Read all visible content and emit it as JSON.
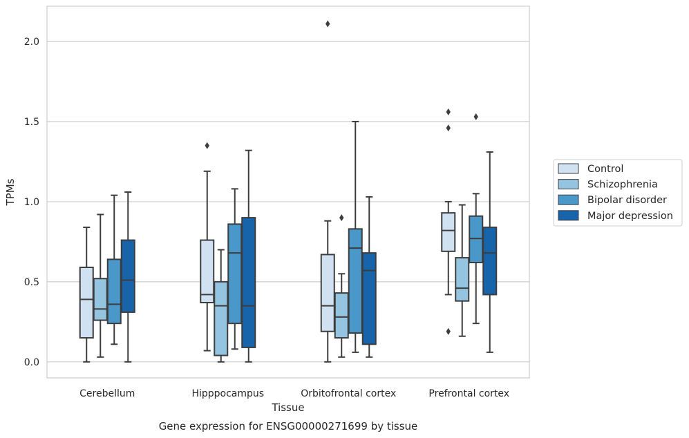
{
  "chart_data": {
    "type": "box",
    "xlabel": "Tissue",
    "ylabel": "TPMs",
    "caption": "Gene expression for ENSG00000271699 by tissue",
    "ylim": [
      -0.1,
      2.22
    ],
    "yticks": [
      "0.0",
      "0.5",
      "1.0",
      "1.5",
      "2.0"
    ],
    "ytick_values": [
      0.0,
      0.5,
      1.0,
      1.5,
      2.0
    ],
    "grid": "horizontal",
    "legend_position": "right",
    "categories": [
      "Cerebellum",
      "Hipppocampus",
      "Orbitofrontal cortex",
      "Prefrontal cortex"
    ],
    "series": [
      {
        "name": "Control",
        "color": "#d0e1f2",
        "boxes": [
          {
            "whislo": 0.0,
            "q1": 0.15,
            "med": 0.39,
            "q3": 0.59,
            "whishi": 0.84,
            "fliers": []
          },
          {
            "whislo": 0.07,
            "q1": 0.37,
            "med": 0.42,
            "q3": 0.76,
            "whishi": 1.19,
            "fliers": [
              1.35
            ]
          },
          {
            "whislo": 0.0,
            "q1": 0.19,
            "med": 0.35,
            "q3": 0.67,
            "whishi": 0.88,
            "fliers": [
              2.11
            ]
          },
          {
            "whislo": 0.42,
            "q1": 0.69,
            "med": 0.82,
            "q3": 0.93,
            "whishi": 1.0,
            "fliers": [
              0.19,
              1.46,
              1.56
            ]
          }
        ]
      },
      {
        "name": "Schizophrenia",
        "color": "#94c4df",
        "boxes": [
          {
            "whislo": 0.03,
            "q1": 0.26,
            "med": 0.33,
            "q3": 0.52,
            "whishi": 0.92,
            "fliers": []
          },
          {
            "whislo": 0.0,
            "q1": 0.04,
            "med": 0.35,
            "q3": 0.5,
            "whishi": 0.7,
            "fliers": []
          },
          {
            "whislo": 0.03,
            "q1": 0.15,
            "med": 0.28,
            "q3": 0.43,
            "whishi": 0.55,
            "fliers": [
              0.9
            ]
          },
          {
            "whislo": 0.16,
            "q1": 0.38,
            "med": 0.46,
            "q3": 0.65,
            "whishi": 0.98,
            "fliers": []
          }
        ]
      },
      {
        "name": "Bipolar disorder",
        "color": "#4a98c9",
        "boxes": [
          {
            "whislo": 0.11,
            "q1": 0.24,
            "med": 0.36,
            "q3": 0.64,
            "whishi": 1.04,
            "fliers": []
          },
          {
            "whislo": 0.08,
            "q1": 0.24,
            "med": 0.68,
            "q3": 0.86,
            "whishi": 1.08,
            "fliers": []
          },
          {
            "whislo": 0.06,
            "q1": 0.18,
            "med": 0.71,
            "q3": 0.83,
            "whishi": 1.5,
            "fliers": []
          },
          {
            "whislo": 0.24,
            "q1": 0.62,
            "med": 0.77,
            "q3": 0.91,
            "whishi": 1.05,
            "fliers": [
              1.53
            ]
          }
        ]
      },
      {
        "name": "Major depression",
        "color": "#1764ab",
        "boxes": [
          {
            "whislo": 0.0,
            "q1": 0.31,
            "med": 0.51,
            "q3": 0.76,
            "whishi": 1.06,
            "fliers": []
          },
          {
            "whislo": 0.0,
            "q1": 0.09,
            "med": 0.35,
            "q3": 0.9,
            "whishi": 1.32,
            "fliers": []
          },
          {
            "whislo": 0.03,
            "q1": 0.11,
            "med": 0.57,
            "q3": 0.68,
            "whishi": 1.03,
            "fliers": []
          },
          {
            "whislo": 0.06,
            "q1": 0.42,
            "med": 0.68,
            "q3": 0.84,
            "whishi": 1.31,
            "fliers": []
          }
        ]
      }
    ],
    "edge_color": "#3d3d3d",
    "grid_color": "#cccccc",
    "frame_color": "#cccccc"
  }
}
